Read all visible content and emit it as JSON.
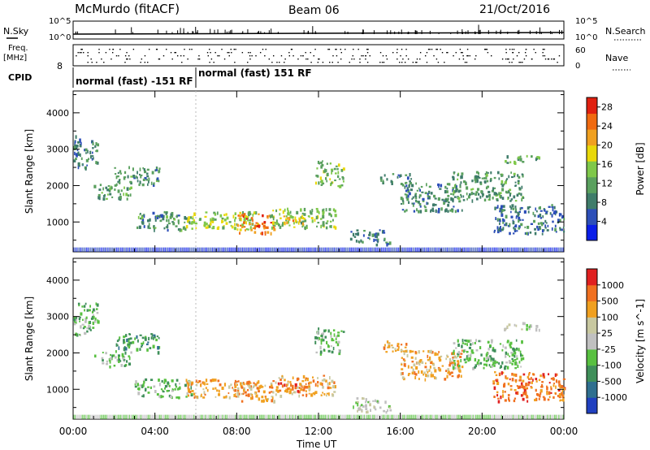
{
  "header": {
    "station": "McMurdo (fitACF)",
    "beam": "Beam 06",
    "date": "21/Oct/2016"
  },
  "status": {
    "nsky_label": "N.Sky",
    "nsky_ticks": [
      "10^5",
      "10^0"
    ],
    "nsearch_label": "N.Search",
    "freq_label_1": "Freq.",
    "freq_label_2": "[MHz]",
    "freq_tick": "8",
    "nave_label": "Nave",
    "nave_ticks": [
      "60",
      "0"
    ],
    "nsearch_ticks": [
      "10^5",
      "10^0"
    ],
    "cpid_label": "CPID",
    "cpid_segments": [
      {
        "label": "normal (fast) -151 RF",
        "start_hour": 0.0,
        "end_hour": 6.0
      },
      {
        "label": "normal (fast) 151 RF",
        "start_hour": 6.0,
        "end_hour": 24.0
      }
    ]
  },
  "colors": {
    "power": [
      "#0a1ee8",
      "#2d4fb8",
      "#3f7c6a",
      "#5aa05e",
      "#7fc84a",
      "#e8d80a",
      "#f0a020",
      "#f06a10",
      "#e02010"
    ],
    "velocity": [
      "#2040c0",
      "#2f6f8f",
      "#3f8f5a",
      "#58c040",
      "#c0c0c0",
      "#c8c8a0",
      "#f0a020",
      "#f07020",
      "#e02020"
    ]
  },
  "chart_data": [
    {
      "type": "heatmap",
      "name": "power",
      "xlabel": "Time UT",
      "ylabel": "Slant Range [km]",
      "xlim": [
        0,
        24
      ],
      "ylim": [
        180,
        4600
      ],
      "xticks": [
        "00:00",
        "04:00",
        "08:00",
        "12:00",
        "16:00",
        "20:00",
        "00:00"
      ],
      "yticks": [
        1000,
        2000,
        3000,
        4000
      ],
      "colorbar_label": "Power [dB]",
      "colorbar_ticks": [
        4,
        8,
        12,
        16,
        20,
        24,
        28
      ],
      "colorbar_range": [
        0,
        30
      ],
      "features": [
        {
          "t_start": 0.0,
          "t_end": 1.2,
          "r_start": 2500,
          "r_end": 3400,
          "level": 8
        },
        {
          "t_start": 1.0,
          "t_end": 2.8,
          "r_start": 1650,
          "r_end": 2050,
          "level": 12
        },
        {
          "t_start": 2.0,
          "t_end": 4.2,
          "r_start": 2050,
          "r_end": 2550,
          "level": 10
        },
        {
          "t_start": 3.0,
          "t_end": 5.8,
          "r_start": 800,
          "r_end": 1300,
          "level": 10
        },
        {
          "t_start": 5.5,
          "t_end": 9.0,
          "r_start": 800,
          "r_end": 1300,
          "level": 16
        },
        {
          "t_start": 8.0,
          "t_end": 9.8,
          "r_start": 700,
          "r_end": 1250,
          "level": 24
        },
        {
          "t_start": 9.5,
          "t_end": 12.8,
          "r_start": 850,
          "r_end": 1400,
          "level": 14
        },
        {
          "t_start": 10.0,
          "t_end": 11.4,
          "r_start": 950,
          "r_end": 1200,
          "level": 20
        },
        {
          "t_start": 11.8,
          "t_end": 13.2,
          "r_start": 2000,
          "r_end": 2700,
          "level": 14
        },
        {
          "t_start": 13.5,
          "t_end": 15.5,
          "r_start": 400,
          "r_end": 800,
          "level": 8
        },
        {
          "t_start": 15.0,
          "t_end": 16.5,
          "r_start": 2050,
          "r_end": 2350,
          "level": 10
        },
        {
          "t_start": 16.0,
          "t_end": 19.0,
          "r_start": 1300,
          "r_end": 2100,
          "level": 9
        },
        {
          "t_start": 18.5,
          "t_end": 22.0,
          "r_start": 1600,
          "r_end": 2400,
          "level": 11
        },
        {
          "t_start": 21.0,
          "t_end": 22.8,
          "r_start": 2650,
          "r_end": 2850,
          "level": 12
        },
        {
          "t_start": 20.5,
          "t_end": 24.0,
          "r_start": 700,
          "r_end": 1500,
          "level": 8
        }
      ]
    },
    {
      "type": "heatmap",
      "name": "velocity",
      "xlabel": "Time UT",
      "ylabel": "Slant Range [km]",
      "xlim": [
        0,
        24
      ],
      "ylim": [
        180,
        4600
      ],
      "xticks": [
        "00:00",
        "04:00",
        "08:00",
        "12:00",
        "16:00",
        "20:00",
        "00:00"
      ],
      "yticks": [
        1000,
        2000,
        3000,
        4000
      ],
      "colorbar_label": "Velocity [m s^-1]",
      "colorbar_ticks": [
        "1000",
        "500",
        "100",
        "25",
        "-25",
        "-100",
        "-500",
        "-1000"
      ],
      "features": [
        {
          "t_start": 0.0,
          "t_end": 1.2,
          "r_start": 2500,
          "r_end": 3400,
          "level": 3
        },
        {
          "t_start": 1.0,
          "t_end": 2.8,
          "r_start": 1650,
          "r_end": 2050,
          "level": 3
        },
        {
          "t_start": 2.0,
          "t_end": 4.2,
          "r_start": 2050,
          "r_end": 2550,
          "level": 2
        },
        {
          "t_start": 3.0,
          "t_end": 5.8,
          "r_start": 800,
          "r_end": 1300,
          "level": 3
        },
        {
          "t_start": 5.5,
          "t_end": 9.0,
          "r_start": 800,
          "r_end": 1300,
          "level": 6
        },
        {
          "t_start": 8.0,
          "t_end": 9.8,
          "r_start": 700,
          "r_end": 1250,
          "level": 6
        },
        {
          "t_start": 9.5,
          "t_end": 12.8,
          "r_start": 850,
          "r_end": 1400,
          "level": 6
        },
        {
          "t_start": 10.0,
          "t_end": 11.4,
          "r_start": 950,
          "r_end": 1200,
          "level": 7
        },
        {
          "t_start": 11.8,
          "t_end": 13.2,
          "r_start": 2000,
          "r_end": 2700,
          "level": 3
        },
        {
          "t_start": 13.5,
          "t_end": 15.5,
          "r_start": 400,
          "r_end": 800,
          "level": 4
        },
        {
          "t_start": 15.0,
          "t_end": 16.5,
          "r_start": 2050,
          "r_end": 2350,
          "level": 6
        },
        {
          "t_start": 16.0,
          "t_end": 19.0,
          "r_start": 1300,
          "r_end": 2100,
          "level": 6
        },
        {
          "t_start": 18.5,
          "t_end": 22.0,
          "r_start": 1600,
          "r_end": 2400,
          "level": 3
        },
        {
          "t_start": 21.0,
          "t_end": 22.8,
          "r_start": 2650,
          "r_end": 2850,
          "level": 4
        },
        {
          "t_start": 20.5,
          "t_end": 24.0,
          "r_start": 700,
          "r_end": 1500,
          "level": 7
        }
      ]
    }
  ]
}
